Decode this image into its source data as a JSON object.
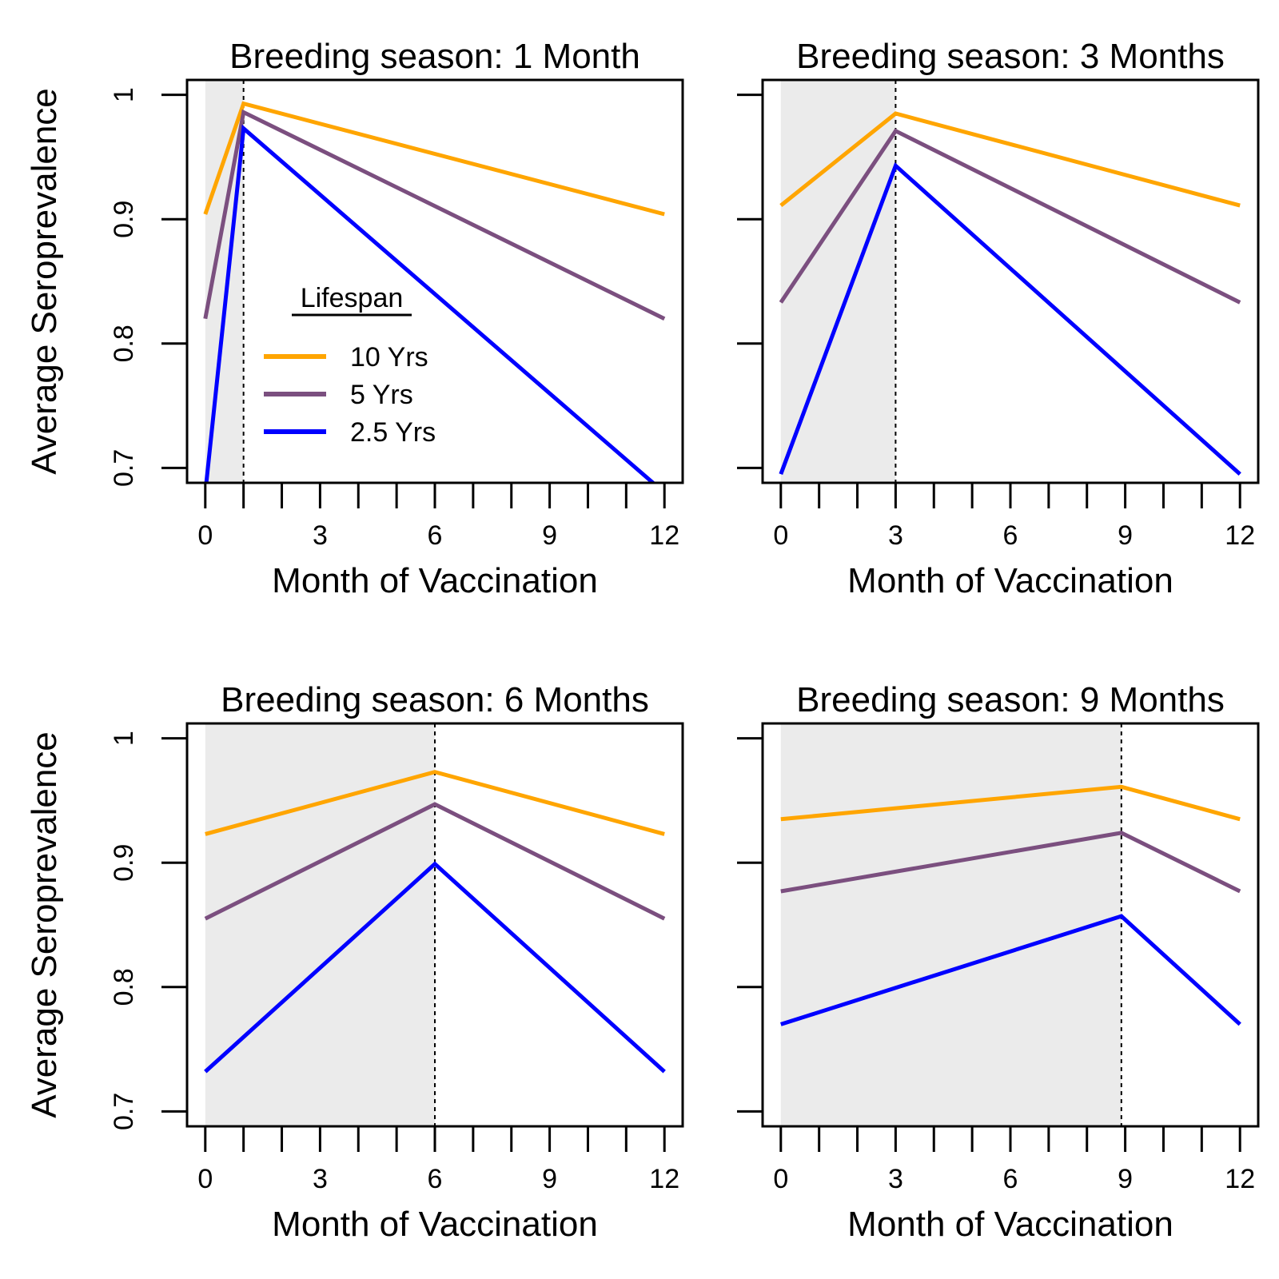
{
  "figure": {
    "ylabel": "Average Seroprevalence",
    "xlabel": "Month of Vaccination",
    "legend": {
      "title": "Lifespan",
      "placement": "inside first panel, center-left",
      "entries": [
        "10 Yrs",
        "5 Yrs",
        "2.5 Yrs"
      ]
    },
    "colors": {
      "10 Yrs": "#FFA500",
      "5 Yrs": "#7B4F7F",
      "2.5 Yrs": "#0000FF",
      "shade": "#EBEBEB"
    }
  },
  "chart_data": [
    {
      "type": "line",
      "title": "Breeding season: 1 Month",
      "xlabel": "Month of Vaccination",
      "ylabel": "Average Seroprevalence",
      "xlim": [
        0,
        12
      ],
      "ylim": [
        0.688,
        1.012
      ],
      "xticks": [
        0,
        3,
        6,
        9,
        12
      ],
      "xticklabels": [
        "0",
        "3",
        "6",
        "9",
        "12"
      ],
      "yticks": [
        0.7,
        0.8,
        0.9,
        1.0
      ],
      "yticklabels": [
        "0.7",
        "0.8",
        "0.9",
        "1"
      ],
      "breeding_end": 1,
      "series": [
        {
          "name": "10 Yrs",
          "x": [
            0,
            1,
            12
          ],
          "y": [
            0.904,
            0.993,
            0.904
          ]
        },
        {
          "name": "5 Yrs",
          "x": [
            0,
            1,
            12
          ],
          "y": [
            0.82,
            0.986,
            0.82
          ]
        },
        {
          "name": "2.5 Yrs",
          "x": [
            0,
            1,
            12
          ],
          "y": [
            0.68,
            0.973,
            0.68
          ]
        }
      ]
    },
    {
      "type": "line",
      "title": "Breeding season: 3 Months",
      "xlabel": "Month of Vaccination",
      "xlim": [
        0,
        12
      ],
      "ylim": [
        0.688,
        1.012
      ],
      "xticks": [
        0,
        3,
        6,
        9,
        12
      ],
      "xticklabels": [
        "0",
        "3",
        "6",
        "9",
        "12"
      ],
      "yticks": [
        0.7,
        0.8,
        0.9,
        1.0
      ],
      "breeding_end": 3,
      "series": [
        {
          "name": "10 Yrs",
          "x": [
            0,
            3,
            12
          ],
          "y": [
            0.911,
            0.985,
            0.911
          ]
        },
        {
          "name": "5 Yrs",
          "x": [
            0,
            3,
            12
          ],
          "y": [
            0.833,
            0.971,
            0.833
          ]
        },
        {
          "name": "2.5 Yrs",
          "x": [
            0,
            3,
            12
          ],
          "y": [
            0.695,
            0.943,
            0.695
          ]
        }
      ]
    },
    {
      "type": "line",
      "title": "Breeding season: 6 Months",
      "xlabel": "Month of Vaccination",
      "ylabel": "Average Seroprevalence",
      "xlim": [
        0,
        12
      ],
      "ylim": [
        0.688,
        1.012
      ],
      "xticks": [
        0,
        3,
        6,
        9,
        12
      ],
      "xticklabels": [
        "0",
        "3",
        "6",
        "9",
        "12"
      ],
      "yticks": [
        0.7,
        0.8,
        0.9,
        1.0
      ],
      "yticklabels": [
        "0.7",
        "0.8",
        "0.9",
        "1"
      ],
      "breeding_end": 6,
      "series": [
        {
          "name": "10 Yrs",
          "x": [
            0,
            6,
            12
          ],
          "y": [
            0.923,
            0.973,
            0.923
          ]
        },
        {
          "name": "5 Yrs",
          "x": [
            0,
            6,
            12
          ],
          "y": [
            0.855,
            0.947,
            0.855
          ]
        },
        {
          "name": "2.5 Yrs",
          "x": [
            0,
            6,
            12
          ],
          "y": [
            0.732,
            0.899,
            0.732
          ]
        }
      ]
    },
    {
      "type": "line",
      "title": "Breeding season: 9 Months",
      "xlabel": "Month of Vaccination",
      "xlim": [
        0,
        12
      ],
      "ylim": [
        0.688,
        1.012
      ],
      "xticks": [
        0,
        3,
        6,
        9,
        12
      ],
      "xticklabels": [
        "0",
        "3",
        "6",
        "9",
        "12"
      ],
      "yticks": [
        0.7,
        0.8,
        0.9,
        1.0
      ],
      "breeding_end": 8.9,
      "series": [
        {
          "name": "10 Yrs",
          "x": [
            0,
            8.9,
            12
          ],
          "y": [
            0.935,
            0.961,
            0.935
          ]
        },
        {
          "name": "5 Yrs",
          "x": [
            0,
            8.9,
            12
          ],
          "y": [
            0.877,
            0.924,
            0.877
          ]
        },
        {
          "name": "2.5 Yrs",
          "x": [
            0,
            8.9,
            12
          ],
          "y": [
            0.77,
            0.857,
            0.77
          ]
        }
      ]
    }
  ]
}
